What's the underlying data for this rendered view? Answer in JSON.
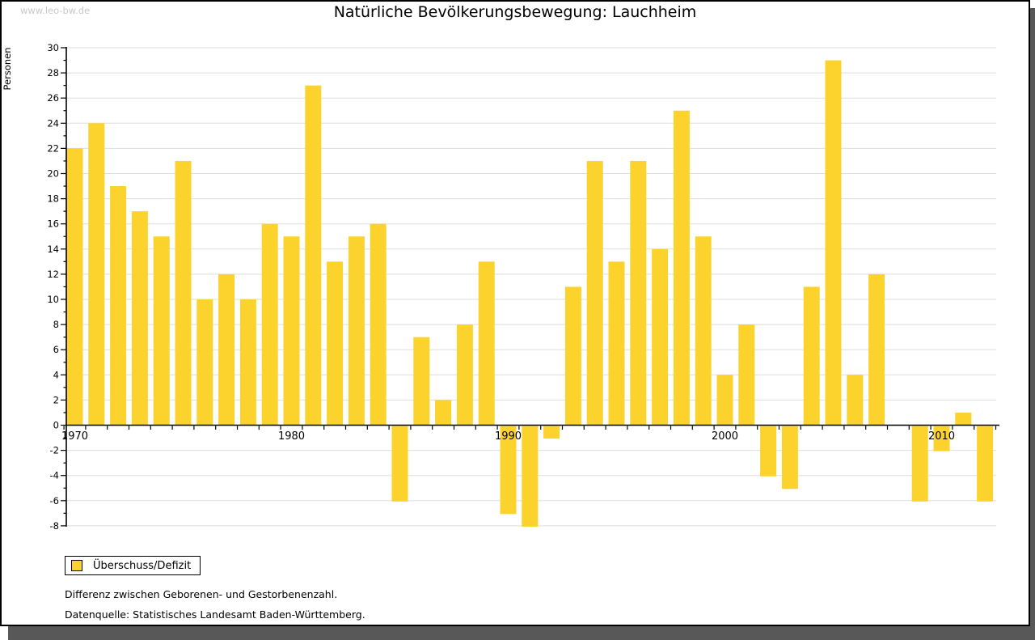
{
  "page": {
    "watermark": "www.leo-bw.de",
    "notes": [
      "Differenz zwischen Geborenen- und Gestorbenenzahl.",
      "Datenquelle: Statistisches Landesamt Baden-Württemberg."
    ]
  },
  "chart_data": {
    "type": "bar",
    "title": "Natürliche Bevölkerungsbewegung: Lauchheim",
    "xlabel": "",
    "ylabel": "Personen",
    "ylim": [
      -8,
      30
    ],
    "ytick_step": 2,
    "grid": "horizontal at even values",
    "legend_position": "bottom-left",
    "legend": [
      "Überschuss/Defizit"
    ],
    "bar_color": "#FCD32D",
    "axis_color": "#000000",
    "gridline_color": "#DDDDDD",
    "x": [
      1970,
      1971,
      1972,
      1973,
      1974,
      1975,
      1976,
      1977,
      1978,
      1979,
      1980,
      1981,
      1982,
      1983,
      1984,
      1985,
      1986,
      1987,
      1988,
      1989,
      1990,
      1991,
      1992,
      1993,
      1994,
      1995,
      1996,
      1997,
      1998,
      1999,
      2000,
      2001,
      2002,
      2003,
      2004,
      2005,
      2006,
      2007,
      2008,
      2009,
      2010,
      2011,
      2012
    ],
    "values": [
      22,
      24,
      19,
      17,
      15,
      21,
      10,
      12,
      10,
      16,
      15,
      27,
      13,
      15,
      16,
      -6,
      7,
      2,
      8,
      13,
      -7,
      -8,
      -1,
      11,
      21,
      13,
      21,
      14,
      25,
      15,
      4,
      8,
      -4,
      -5,
      11,
      29,
      4,
      12,
      0,
      -6,
      -2,
      1,
      -6
    ],
    "xtick_labels": [
      "1970",
      "1980",
      "1990",
      "2000",
      "2010"
    ]
  }
}
